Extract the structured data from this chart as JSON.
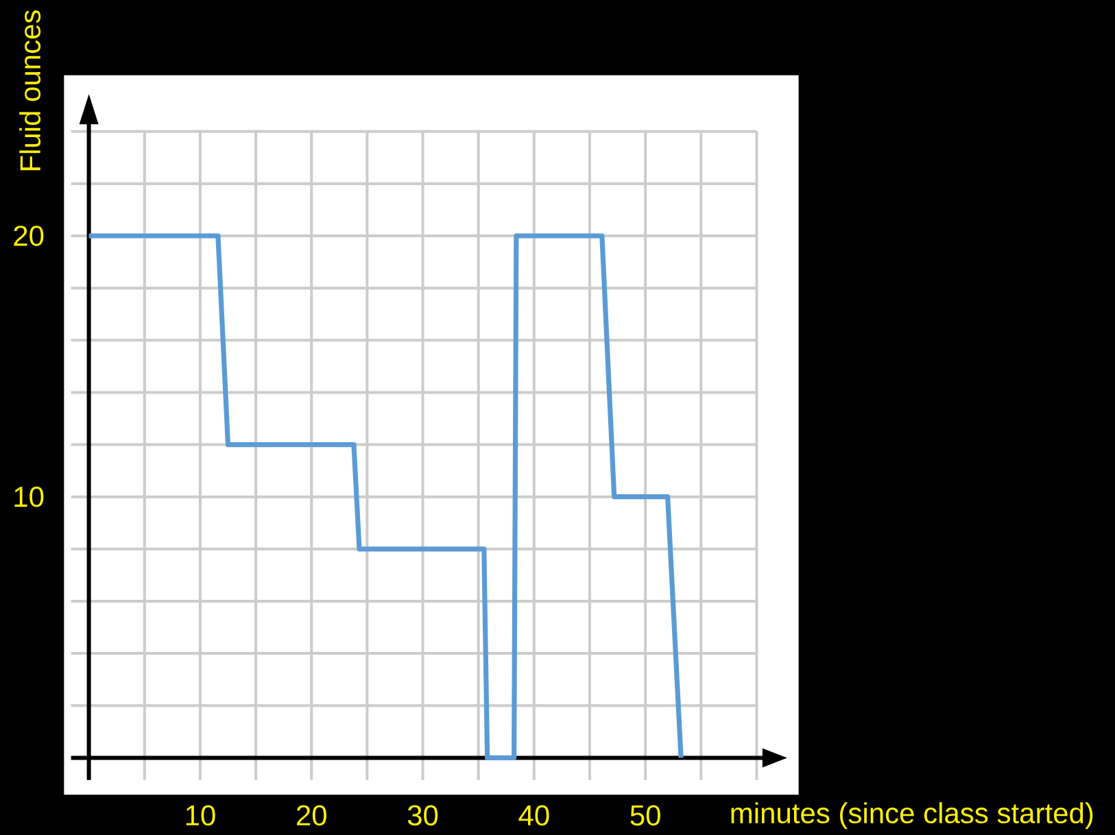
{
  "chart_data": {
    "type": "line",
    "xlabel": "minutes (since class started)",
    "ylabel": "Fluid ounces",
    "x": [
      0,
      11.6,
      12.5,
      23.8,
      24.3,
      35.5,
      35.8,
      38.2,
      38.4,
      46.1,
      47.2,
      52.0,
      53.2
    ],
    "values": [
      20,
      20,
      12,
      12,
      8,
      8,
      0,
      0,
      20,
      20,
      10,
      10,
      0
    ],
    "color": "#5b9bd5",
    "xlim": [
      -1.6,
      60
    ],
    "ylim": [
      -0.85,
      24
    ],
    "xticks": [
      {
        "value": 5,
        "label": null
      },
      10,
      {
        "value": 15,
        "label": null
      },
      20,
      {
        "value": 25,
        "label": null
      },
      30,
      {
        "value": 35,
        "label": null
      },
      40,
      {
        "value": 45,
        "label": null
      },
      50,
      {
        "value": 55,
        "label": null
      },
      {
        "value": 60,
        "label": null
      }
    ],
    "yticks": [
      {
        "value": 2,
        "label": null
      },
      {
        "value": 4,
        "label": null
      },
      {
        "value": 6,
        "label": null
      },
      {
        "value": 8,
        "label": null
      },
      10,
      {
        "value": 12,
        "label": null
      },
      {
        "value": 14,
        "label": null
      },
      {
        "value": 16,
        "label": null
      },
      {
        "value": 18,
        "label": null
      },
      20,
      {
        "value": 22,
        "label": null
      },
      {
        "value": 24,
        "label": null
      }
    ],
    "grid": true
  }
}
